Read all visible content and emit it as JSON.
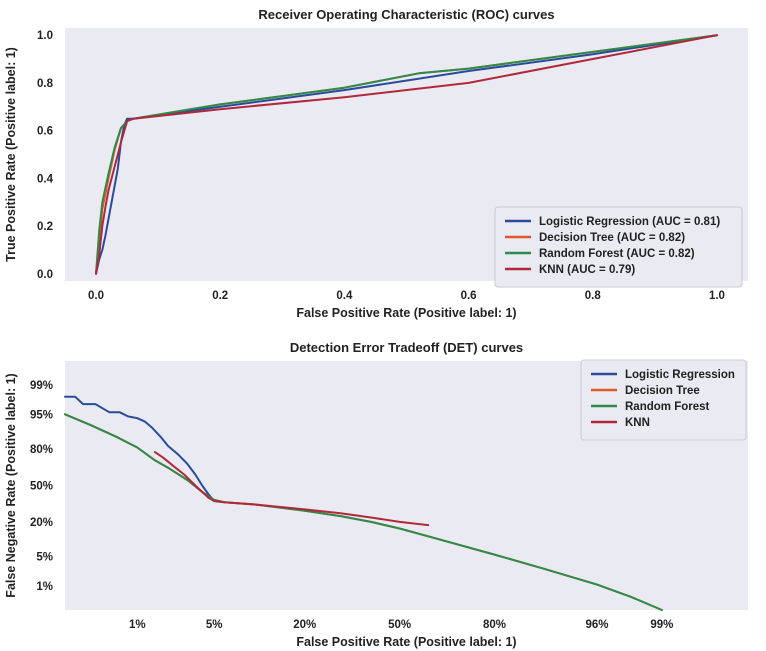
{
  "chart_data": [
    {
      "type": "line",
      "title": "Receiver Operating Characteristic (ROC) curves",
      "xlabel": "False Positive Rate (Positive label: 1)",
      "ylabel": "True Positive Rate (Positive label: 1)",
      "xlim": [
        -0.05,
        1.05
      ],
      "ylim": [
        -0.03,
        1.03
      ],
      "xticks": [
        0.0,
        0.2,
        0.4,
        0.6,
        0.8,
        1.0
      ],
      "xtick_labels": [
        "0.0",
        "0.2",
        "0.4",
        "0.6",
        "0.8",
        "1.0"
      ],
      "yticks": [
        0.0,
        0.2,
        0.4,
        0.6,
        0.8,
        1.0
      ],
      "ytick_labels": [
        "0.0",
        "0.2",
        "0.4",
        "0.6",
        "0.8",
        "1.0"
      ],
      "grid": false,
      "legend_position": "bottom-right",
      "series": [
        {
          "name": "Logistic Regression (AUC = 0.81)",
          "color": "#2a4b9b",
          "x": [
            0.0,
            0.005,
            0.01,
            0.015,
            0.02,
            0.025,
            0.03,
            0.035,
            0.04,
            0.045,
            0.05,
            0.06,
            0.2,
            0.4,
            0.6,
            0.8,
            1.0
          ],
          "y": [
            0.0,
            0.06,
            0.1,
            0.16,
            0.23,
            0.3,
            0.37,
            0.44,
            0.55,
            0.62,
            0.65,
            0.65,
            0.7,
            0.77,
            0.85,
            0.92,
            1.0
          ]
        },
        {
          "name": "Decision Tree (AUC = 0.82)",
          "color": "#e2582c",
          "x": [
            0.0,
            0.005,
            0.01,
            0.02,
            0.03,
            0.04,
            0.05,
            0.06,
            0.2,
            0.4,
            0.52,
            0.6,
            0.8,
            1.0
          ],
          "y": [
            0.0,
            0.14,
            0.27,
            0.4,
            0.52,
            0.61,
            0.64,
            0.65,
            0.71,
            0.78,
            0.84,
            0.86,
            0.93,
            1.0
          ]
        },
        {
          "name": "Random Forest (AUC = 0.82)",
          "color": "#2e8b4a",
          "x": [
            0.0,
            0.005,
            0.01,
            0.02,
            0.03,
            0.04,
            0.05,
            0.06,
            0.2,
            0.4,
            0.52,
            0.6,
            0.8,
            1.0
          ],
          "y": [
            0.0,
            0.18,
            0.3,
            0.42,
            0.53,
            0.61,
            0.64,
            0.65,
            0.71,
            0.78,
            0.84,
            0.86,
            0.93,
            1.0
          ]
        },
        {
          "name": "KNN (AUC = 0.79)",
          "color": "#b1283b",
          "x": [
            0.0,
            0.005,
            0.01,
            0.015,
            0.02,
            0.03,
            0.04,
            0.05,
            0.06,
            0.2,
            0.4,
            0.6,
            0.8,
            1.0
          ],
          "y": [
            0.0,
            0.08,
            0.2,
            0.28,
            0.35,
            0.45,
            0.55,
            0.64,
            0.65,
            0.69,
            0.74,
            0.8,
            0.9,
            1.0
          ]
        }
      ]
    },
    {
      "type": "line",
      "title": "Detection Error Tradeoff (DET) curves",
      "xlabel": "False Positive Rate (Positive label: 1)",
      "ylabel": "False Negative Rate (Positive label: 1)",
      "x_scale": "normal deviate (probit)",
      "y_scale": "normal deviate (probit)",
      "xlim": [
        0.0015,
        0.999
      ],
      "ylim": [
        0.002,
        0.998
      ],
      "xticks": [
        0.01,
        0.05,
        0.2,
        0.5,
        0.8,
        0.96,
        0.99
      ],
      "xtick_labels": [
        "1%",
        "5%",
        "20%",
        "50%",
        "80%",
        "96%",
        "99%"
      ],
      "yticks": [
        0.99,
        0.95,
        0.8,
        0.5,
        0.2,
        0.05,
        0.01
      ],
      "ytick_labels": [
        "99%",
        "95%",
        "80%",
        "50%",
        "20%",
        "5%",
        "1%"
      ],
      "grid": false,
      "legend_position": "top-right",
      "series": [
        {
          "name": "Logistic Regression",
          "color": "#2a4b9b",
          "x": [
            0.0015,
            0.002,
            0.0025,
            0.0035,
            0.005,
            0.0065,
            0.008,
            0.01,
            0.012,
            0.014,
            0.017,
            0.02,
            0.025,
            0.03,
            0.035,
            0.04,
            0.045,
            0.05,
            0.06
          ],
          "y": [
            0.98,
            0.98,
            0.97,
            0.97,
            0.955,
            0.955,
            0.945,
            0.94,
            0.93,
            0.91,
            0.87,
            0.82,
            0.76,
            0.69,
            0.6,
            0.5,
            0.42,
            0.36,
            0.35
          ]
        },
        {
          "name": "Decision Tree",
          "color": "#e2582c",
          "x": [
            0.0015,
            0.003,
            0.006,
            0.01,
            0.015,
            0.02,
            0.03,
            0.04,
            0.05,
            0.06,
            0.1,
            0.2,
            0.3,
            0.4,
            0.5,
            0.6,
            0.8,
            0.9,
            0.96,
            0.98,
            0.99
          ],
          "y": [
            0.95,
            0.92,
            0.87,
            0.81,
            0.72,
            0.66,
            0.55,
            0.44,
            0.37,
            0.35,
            0.33,
            0.28,
            0.24,
            0.2,
            0.16,
            0.12,
            0.055,
            0.027,
            0.011,
            0.005,
            0.002
          ]
        },
        {
          "name": "Random Forest",
          "color": "#2e8b4a",
          "x": [
            0.0015,
            0.003,
            0.006,
            0.01,
            0.015,
            0.02,
            0.03,
            0.04,
            0.05,
            0.06,
            0.1,
            0.2,
            0.3,
            0.4,
            0.5,
            0.6,
            0.8,
            0.9,
            0.96,
            0.98,
            0.99
          ],
          "y": [
            0.95,
            0.92,
            0.87,
            0.81,
            0.72,
            0.66,
            0.55,
            0.44,
            0.37,
            0.35,
            0.33,
            0.28,
            0.24,
            0.2,
            0.16,
            0.12,
            0.055,
            0.027,
            0.011,
            0.005,
            0.002
          ]
        },
        {
          "name": "KNN",
          "color": "#b1283b",
          "x": [
            0.015,
            0.018,
            0.022,
            0.028,
            0.035,
            0.045,
            0.05,
            0.06,
            0.1,
            0.2,
            0.3,
            0.4,
            0.5,
            0.6
          ],
          "y": [
            0.78,
            0.74,
            0.68,
            0.6,
            0.5,
            0.39,
            0.36,
            0.35,
            0.33,
            0.29,
            0.26,
            0.23,
            0.2,
            0.18
          ]
        }
      ]
    }
  ]
}
